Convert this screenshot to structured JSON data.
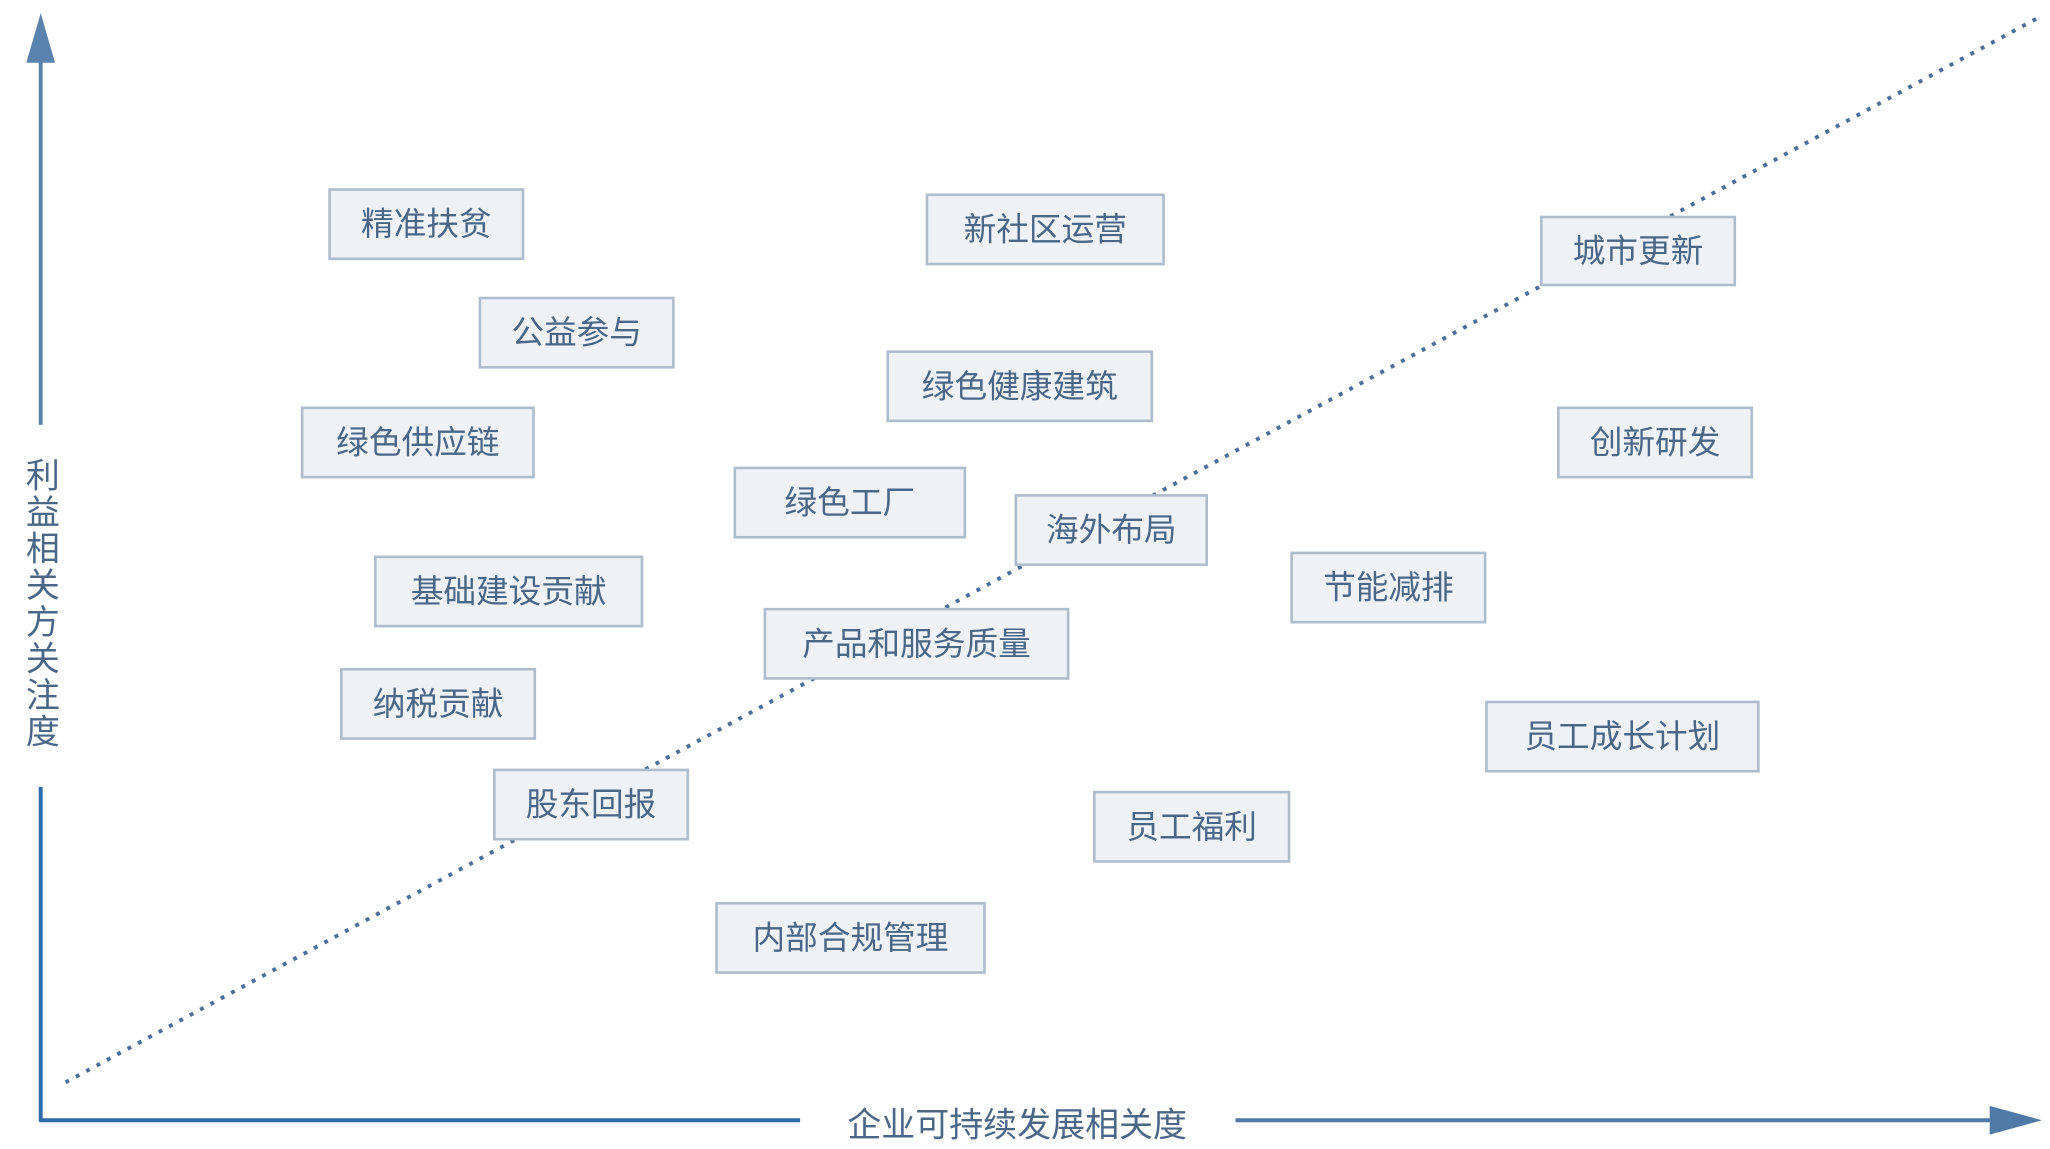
{
  "axes": {
    "y_label": "利益相关方关注度",
    "x_label": "企业可持续发展相关度"
  },
  "nodes": [
    {
      "label": "精准扶贫"
    },
    {
      "label": "新社区运营"
    },
    {
      "label": "城市更新"
    },
    {
      "label": "公益参与"
    },
    {
      "label": "绿色健康建筑"
    },
    {
      "label": "绿色供应链"
    },
    {
      "label": "创新研发"
    },
    {
      "label": "绿色工厂"
    },
    {
      "label": "海外布局"
    },
    {
      "label": "节能减排"
    },
    {
      "label": "基础建设贡献"
    },
    {
      "label": "产品和服务质量"
    },
    {
      "label": "纳税贡献"
    },
    {
      "label": "员工成长计划"
    },
    {
      "label": "股东回报"
    },
    {
      "label": "员工福利"
    },
    {
      "label": "内部合规管理"
    }
  ]
}
